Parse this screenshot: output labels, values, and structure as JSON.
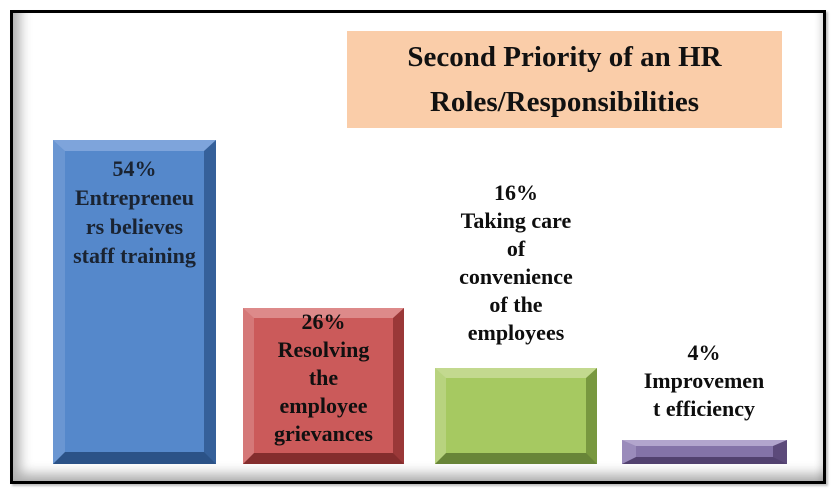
{
  "title": {
    "lines": [
      "Second Priority of an HR",
      "Roles/Responsibilities"
    ],
    "bg_color": "#FACDA9",
    "text_color": "#111111"
  },
  "chart_data": {
    "type": "bar",
    "categories": [
      "Entrepreneurs believes staff training",
      "Resolving the employee grievances",
      "Taking care of convenience of the employees",
      "Improvement efficiency"
    ],
    "values": [
      54,
      26,
      16,
      4
    ],
    "unit": "%",
    "title": "Second Priority of an HR Roles/Responsibilities",
    "xlabel": "",
    "ylabel": "",
    "ylim": [
      0,
      60
    ],
    "grid": false,
    "legend": "none",
    "bar_colors": [
      "#5588CB",
      "#CB5A5A",
      "#A6C961",
      "#8473A8"
    ],
    "data_label_position": [
      "inside-top",
      "inside-top",
      "above",
      "above"
    ]
  },
  "bars": [
    {
      "value_label": "54%",
      "lines": [
        "54%",
        "Entrepreneu",
        "rs believes",
        "staff training"
      ],
      "fill": "#5588CB"
    },
    {
      "value_label": "26%",
      "lines": [
        "26%",
        "Resolving",
        "the",
        "employee",
        "grievances"
      ],
      "fill": "#CB5A5A"
    },
    {
      "value_label": "16%",
      "lines": [
        "16%",
        "Taking care",
        "of",
        "convenience",
        "of the",
        "employees"
      ],
      "fill": "#A6C961"
    },
    {
      "value_label": "4%",
      "lines": [
        "4%",
        "Improvemen",
        "t efficiency"
      ],
      "fill": "#8473A8"
    }
  ]
}
